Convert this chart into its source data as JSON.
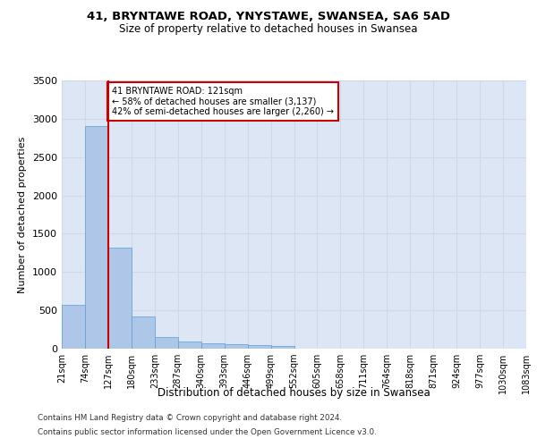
{
  "title_line1": "41, BRYNTAWE ROAD, YNYSTAWE, SWANSEA, SA6 5AD",
  "title_line2": "Size of property relative to detached houses in Swansea",
  "xlabel": "Distribution of detached houses by size in Swansea",
  "ylabel": "Number of detached properties",
  "footer_line1": "Contains HM Land Registry data © Crown copyright and database right 2024.",
  "footer_line2": "Contains public sector information licensed under the Open Government Licence v3.0.",
  "bin_labels": [
    "21sqm",
    "74sqm",
    "127sqm",
    "180sqm",
    "233sqm",
    "287sqm",
    "340sqm",
    "393sqm",
    "446sqm",
    "499sqm",
    "552sqm",
    "605sqm",
    "658sqm",
    "711sqm",
    "764sqm",
    "818sqm",
    "871sqm",
    "924sqm",
    "977sqm",
    "1030sqm",
    "1083sqm"
  ],
  "bar_values": [
    570,
    2910,
    1320,
    415,
    155,
    90,
    65,
    55,
    45,
    40,
    0,
    0,
    0,
    0,
    0,
    0,
    0,
    0,
    0,
    0
  ],
  "bar_color": "#aec6e8",
  "bar_edge_color": "#5a9fd4",
  "grid_color": "#d0d8e8",
  "background_color": "#dce6f5",
  "vline_color": "#cc0000",
  "annotation_text": "41 BRYNTAWE ROAD: 121sqm\n← 58% of detached houses are smaller (3,137)\n42% of semi-detached houses are larger (2,260) →",
  "annotation_box_color": "#ffffff",
  "annotation_box_edge": "#cc0000",
  "ylim": [
    0,
    3500
  ],
  "yticks": [
    0,
    500,
    1000,
    1500,
    2000,
    2500,
    3000,
    3500
  ]
}
